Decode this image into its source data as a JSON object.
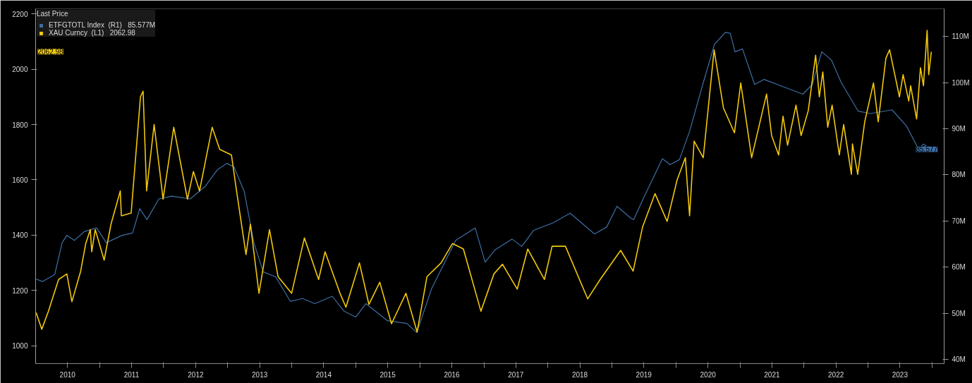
{
  "chart_data": {
    "type": "line",
    "legend_title": "Last Price",
    "legend": "top left",
    "grid": false,
    "xlim": [
      "2010-01-01",
      "2024-03-10"
    ],
    "xticks": [
      {
        "value": "2010-07-02",
        "label": "2010"
      },
      {
        "value": "2011-01-01",
        "label": null
      },
      {
        "value": "2011-07-02",
        "label": "2011"
      },
      {
        "value": "2012-01-01",
        "label": null
      },
      {
        "value": "2012-07-02",
        "label": "2012"
      },
      {
        "value": "2013-01-01",
        "label": null
      },
      {
        "value": "2013-07-02",
        "label": "2013"
      },
      {
        "value": "2014-01-01",
        "label": null
      },
      {
        "value": "2014-07-02",
        "label": "2014"
      },
      {
        "value": "2015-01-01",
        "label": null
      },
      {
        "value": "2015-07-02",
        "label": "2015"
      },
      {
        "value": "2016-01-01",
        "label": null
      },
      {
        "value": "2016-07-02",
        "label": "2016"
      },
      {
        "value": "2017-01-01",
        "label": null
      },
      {
        "value": "2017-07-02",
        "label": "2017"
      },
      {
        "value": "2018-01-01",
        "label": null
      },
      {
        "value": "2018-07-02",
        "label": "2018"
      },
      {
        "value": "2019-01-01",
        "label": null
      },
      {
        "value": "2019-07-02",
        "label": "2019"
      },
      {
        "value": "2020-01-01",
        "label": null
      },
      {
        "value": "2020-07-02",
        "label": "2020"
      },
      {
        "value": "2021-01-01",
        "label": null
      },
      {
        "value": "2021-07-02",
        "label": "2021"
      },
      {
        "value": "2022-01-01",
        "label": null
      },
      {
        "value": "2022-07-02",
        "label": "2022"
      },
      {
        "value": "2023-01-01",
        "label": null
      },
      {
        "value": "2023-07-02",
        "label": "2023"
      },
      {
        "value": "2024-01-01",
        "label": null
      }
    ],
    "ylim": [
      936,
      2218
    ],
    "yticks": [
      1000,
      1200,
      1400,
      1600,
      1800,
      2000,
      2200
    ],
    "y2lim": [
      39.1,
      116
    ],
    "y2ticks": [
      {
        "value": 40,
        "label": "40M"
      },
      {
        "value": 50,
        "label": "50M"
      },
      {
        "value": 60,
        "label": "60M"
      },
      {
        "value": 70,
        "label": "70M"
      },
      {
        "value": 80,
        "label": "80M"
      },
      {
        "value": 90,
        "label": "90M"
      },
      {
        "value": 100,
        "label": "100M"
      },
      {
        "value": 110,
        "label": "110M"
      }
    ],
    "annotations": [
      "85.577",
      "2062.98"
    ],
    "series": [
      {
        "name": "ETFGTOTL Index  (R1)   85.577M",
        "color": "#3d6fa6",
        "axis": "y2",
        "x": [
          "2010-01-04",
          "2010-02-10",
          "2010-04-20",
          "2010-06-01",
          "2010-06-28",
          "2010-08-10",
          "2010-10-05",
          "2010-12-15",
          "2011-02-08",
          "2011-05-10",
          "2011-07-08",
          "2011-08-18",
          "2011-09-28",
          "2011-12-05",
          "2012-02-15",
          "2012-06-01",
          "2012-08-25",
          "2012-11-02",
          "2012-12-28",
          "2013-02-06",
          "2013-04-05",
          "2013-05-30",
          "2013-07-22",
          "2013-10-01",
          "2013-12-24",
          "2014-03-05",
          "2014-05-12",
          "2014-08-20",
          "2014-10-25",
          "2015-01-01",
          "2015-02-28",
          "2015-07-01",
          "2015-10-20",
          "2015-12-15",
          "2016-03-08",
          "2016-07-24",
          "2016-11-12",
          "2017-01-08",
          "2017-03-04",
          "2017-06-10",
          "2017-08-05",
          "2017-10-12",
          "2018-01-30",
          "2018-05-08",
          "2018-09-24",
          "2018-12-02",
          "2019-01-30",
          "2019-04-20",
          "2019-05-05",
          "2019-06-28",
          "2019-10-16",
          "2019-11-29",
          "2020-01-21",
          "2020-03-18",
          "2020-06-06",
          "2020-08-08",
          "2020-10-09",
          "2020-11-06",
          "2020-12-03",
          "2021-01-15",
          "2021-03-25",
          "2021-05-18",
          "2021-09-05",
          "2021-12-25",
          "2022-02-17",
          "2022-04-12",
          "2022-06-06",
          "2022-07-31",
          "2022-11-06",
          "2023-01-15",
          "2023-05-18",
          "2023-08-08",
          "2023-10-16",
          "2023-11-13",
          "2023-12-28"
        ],
        "values": [
          57.4,
          56.9,
          58.4,
          65.3,
          66.9,
          65.8,
          67.7,
          68.5,
          65.3,
          66.9,
          67.4,
          72.7,
          70.3,
          74.8,
          75.4,
          74.8,
          77.5,
          81.1,
          82.5,
          81.7,
          76.4,
          65.3,
          59.0,
          57.9,
          52.6,
          53.2,
          52.1,
          53.7,
          50.5,
          49.2,
          52.1,
          48.4,
          47.8,
          45.8,
          55.3,
          65.8,
          68.5,
          61.1,
          63.7,
          66.1,
          64.5,
          68.0,
          69.6,
          71.7,
          67.2,
          68.7,
          73.2,
          70.6,
          70.3,
          74.8,
          83.5,
          82.2,
          83.3,
          89.3,
          100.1,
          108.3,
          110.9,
          110.7,
          106.7,
          107.3,
          99.6,
          100.7,
          99.1,
          97.5,
          99.6,
          106.7,
          104.9,
          100.1,
          93.8,
          93.3,
          94.1,
          90.6,
          85.6,
          86.7,
          85.577
        ]
      },
      {
        "name": "XAU Curncy  (L1)   2062.98",
        "color": "#f2c80a",
        "x": [
          "2010-01-04",
          "2010-02-05",
          "2010-03-15",
          "2010-05-12",
          "2010-06-28",
          "2010-07-27",
          "2010-09-15",
          "2010-10-14",
          "2010-11-09",
          "2010-11-17",
          "2010-12-07",
          "2011-01-27",
          "2011-03-07",
          "2011-04-29",
          "2011-05-05",
          "2011-06-30",
          "2011-08-22",
          "2011-09-06",
          "2011-09-26",
          "2011-11-08",
          "2011-12-29",
          "2012-02-28",
          "2012-05-16",
          "2012-06-19",
          "2012-07-24",
          "2012-10-04",
          "2012-11-16",
          "2013-01-22",
          "2013-02-20",
          "2013-04-15",
          "2013-05-10",
          "2013-06-28",
          "2013-08-27",
          "2013-10-15",
          "2013-12-31",
          "2014-03-14",
          "2014-06-03",
          "2014-07-10",
          "2014-10-03",
          "2014-11-06",
          "2015-01-22",
          "2015-03-17",
          "2015-05-18",
          "2015-07-24",
          "2015-10-14",
          "2015-12-17",
          "2016-02-11",
          "2016-05-02",
          "2016-07-06",
          "2016-09-06",
          "2016-12-15",
          "2017-02-27",
          "2017-04-17",
          "2017-07-10",
          "2017-09-08",
          "2017-12-12",
          "2018-01-25",
          "2018-04-11",
          "2018-08-16",
          "2018-10-26",
          "2019-02-20",
          "2019-05-02",
          "2019-06-25",
          "2019-09-04",
          "2019-11-12",
          "2020-01-08",
          "2020-02-24",
          "2020-03-19",
          "2020-04-14",
          "2020-06-05",
          "2020-08-06",
          "2020-09-28",
          "2020-11-30",
          "2021-01-05",
          "2021-03-08",
          "2021-06-01",
          "2021-06-30",
          "2021-08-09",
          "2021-09-03",
          "2021-09-29",
          "2021-11-16",
          "2021-12-15",
          "2022-01-25",
          "2022-03-08",
          "2022-03-29",
          "2022-04-18",
          "2022-05-16",
          "2022-06-10",
          "2022-07-21",
          "2022-08-15",
          "2022-09-28",
          "2022-10-04",
          "2022-11-03",
          "2022-12-13",
          "2023-02-01",
          "2023-02-28",
          "2023-04-13",
          "2023-05-04",
          "2023-06-29",
          "2023-07-20",
          "2023-08-21",
          "2023-09-01",
          "2023-10-05",
          "2023-10-27",
          "2023-11-13",
          "2023-12-04",
          "2023-12-13",
          "2023-12-28"
        ],
        "values": [
          1120,
          1060,
          1125,
          1240,
          1260,
          1160,
          1270,
          1370,
          1420,
          1340,
          1420,
          1310,
          1440,
          1560,
          1470,
          1480,
          1900,
          1920,
          1560,
          1800,
          1530,
          1790,
          1530,
          1630,
          1560,
          1790,
          1710,
          1690,
          1560,
          1330,
          1440,
          1190,
          1420,
          1250,
          1190,
          1390,
          1240,
          1340,
          1190,
          1140,
          1300,
          1150,
          1230,
          1080,
          1190,
          1050,
          1250,
          1300,
          1370,
          1350,
          1125,
          1260,
          1295,
          1205,
          1350,
          1240,
          1360,
          1360,
          1170,
          1240,
          1345,
          1270,
          1430,
          1550,
          1450,
          1600,
          1680,
          1470,
          1740,
          1680,
          2070,
          1860,
          1770,
          1950,
          1680,
          1910,
          1760,
          1690,
          1830,
          1725,
          1870,
          1760,
          1850,
          2050,
          1900,
          1990,
          1790,
          1870,
          1690,
          1800,
          1620,
          1730,
          1620,
          1810,
          1950,
          1810,
          2040,
          2070,
          1900,
          1980,
          1885,
          1940,
          1820,
          2005,
          1940,
          2140,
          1980,
          2062.98
        ]
      }
    ]
  }
}
